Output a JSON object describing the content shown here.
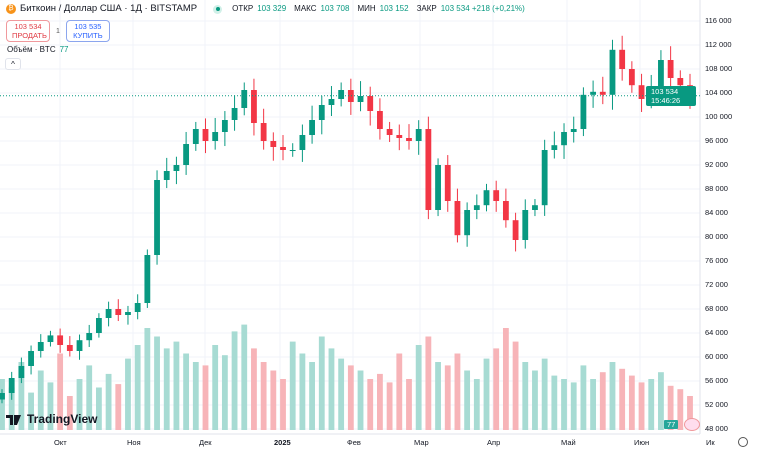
{
  "header": {
    "title": "Биткоин / Доллар США · 1Д · BITSTAMP",
    "ohlc": [
      {
        "label": "ОТКР",
        "value": "103 329"
      },
      {
        "label": "МАКС",
        "value": "103 708"
      },
      {
        "label": "МИН",
        "value": "103 152"
      },
      {
        "label": "ЗАКР",
        "value": "103 534 +218 (+0,21%)"
      }
    ]
  },
  "trade": {
    "sell_price": "103 534",
    "sell_label": "ПРОДАТЬ",
    "quantity": "1",
    "buy_price": "103 535",
    "buy_label": "КУПИТЬ"
  },
  "volume_indicator": {
    "label": "Объём · BTC",
    "value": "77"
  },
  "price_tag": {
    "price": "103 534",
    "countdown": "15:46:26"
  },
  "logo_text": "TradingView",
  "colors": {
    "up": "#089981",
    "down": "#f23645",
    "vol_up": "#a7dbd3",
    "vol_down": "#f7b4b8"
  },
  "chart_data": {
    "type": "candlestick",
    "y_ticks": [
      "116 000",
      "112 000",
      "108 000",
      "104 000",
      "100 000",
      "96 000",
      "92 000",
      "88 000",
      "84 000",
      "80 000",
      "76 000",
      "72 000",
      "68 000",
      "64 000",
      "60 000",
      "56 000",
      "52 000",
      "48 000"
    ],
    "ylim": [
      48000,
      118000
    ],
    "x_ticks": [
      "Окт",
      "Ноя",
      "Дек",
      "2025",
      "Фев",
      "Мар",
      "Апр",
      "Май",
      "Июн",
      "Ик"
    ],
    "closes": [
      54000,
      56500,
      58500,
      61000,
      62500,
      63600,
      62000,
      61000,
      62800,
      64000,
      66500,
      68000,
      67000,
      67500,
      69000,
      77000,
      89500,
      91000,
      92000,
      95500,
      98000,
      96000,
      97500,
      99500,
      101500,
      104500,
      99000,
      96000,
      95000,
      94500,
      94500,
      97000,
      99500,
      102000,
      103000,
      104500,
      102500,
      103500,
      101000,
      98000,
      97000,
      96500,
      96000,
      98000,
      84500,
      92000,
      86000,
      80300,
      84500,
      85300,
      87800,
      86000,
      82800,
      79500,
      84500,
      85300,
      94500,
      95300,
      97500,
      98000,
      103700,
      104200,
      103700,
      111200,
      108000,
      105300,
      103000,
      104500,
      109500,
      106500,
      105300,
      103534
    ],
    "volumes": [
      30,
      25,
      40,
      22,
      35,
      28,
      45,
      20,
      30,
      38,
      25,
      33,
      27,
      42,
      50,
      60,
      55,
      48,
      52,
      45,
      40,
      38,
      50,
      44,
      58,
      62,
      48,
      40,
      35,
      30,
      52,
      45,
      40,
      55,
      48,
      42,
      38,
      35,
      30,
      33,
      28,
      45,
      30,
      50,
      55,
      40,
      38,
      45,
      35,
      30,
      42,
      48,
      60,
      52,
      40,
      35,
      42,
      32,
      30,
      28,
      38,
      30,
      34,
      40,
      36,
      32,
      28,
      30,
      34,
      26,
      24,
      20
    ]
  }
}
